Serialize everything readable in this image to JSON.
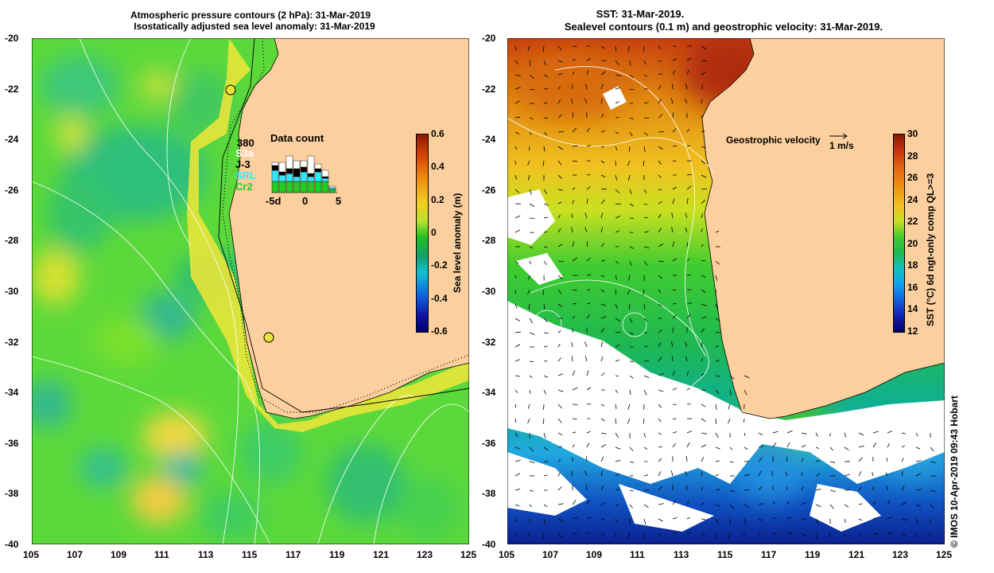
{
  "left_panel": {
    "title_line1": "Atmospheric pressure contours (2 hPa): 31-Mar-2019",
    "title_line2": "Isostatically adjusted sea level anomaly: 31-Mar-2019",
    "colorbar_label": "Sea level anomaly (m)",
    "colorbar_ticks": [
      "0.6",
      "0.4",
      "0.2",
      "0",
      "-0.2",
      "-0.4",
      "-0.6"
    ],
    "data_count": {
      "title": "Data count",
      "total": "380",
      "legend": [
        "S3a",
        "J-3",
        "SRL",
        "Cr2"
      ],
      "legend_colors": [
        "#ffffff",
        "#000000",
        "#33e6ff",
        "#22cc22"
      ],
      "x_ticks": [
        "-5d",
        "0",
        "5"
      ]
    }
  },
  "right_panel": {
    "title_line1": "SST: 31-Mar-2019.",
    "title_line2": "Sealevel contours (0.1 m) and geostrophic velocity: 31-Mar-2019.",
    "velocity_label": "Geostrophic velocity",
    "velocity_scale": "1 m/s",
    "colorbar_label": "SST (°C) 6d ngt-only comp QL>=3",
    "colorbar_ticks": [
      "30",
      "28",
      "26",
      "24",
      "22",
      "20",
      "18",
      "16",
      "14",
      "12"
    ],
    "credit": "© IMOS 10-Apr-2019 09:43 Hobart"
  },
  "axes": {
    "lat_ticks": [
      "-20",
      "-22",
      "-24",
      "-26",
      "-28",
      "-30",
      "-32",
      "-34",
      "-36",
      "-38",
      "-40"
    ],
    "lon_ticks": [
      "105",
      "107",
      "109",
      "111",
      "113",
      "115",
      "117",
      "119",
      "121",
      "123",
      "125"
    ]
  },
  "colors": {
    "land": "#fccf9e",
    "ocean_green": "#66dd22",
    "coast": "#000000"
  }
}
